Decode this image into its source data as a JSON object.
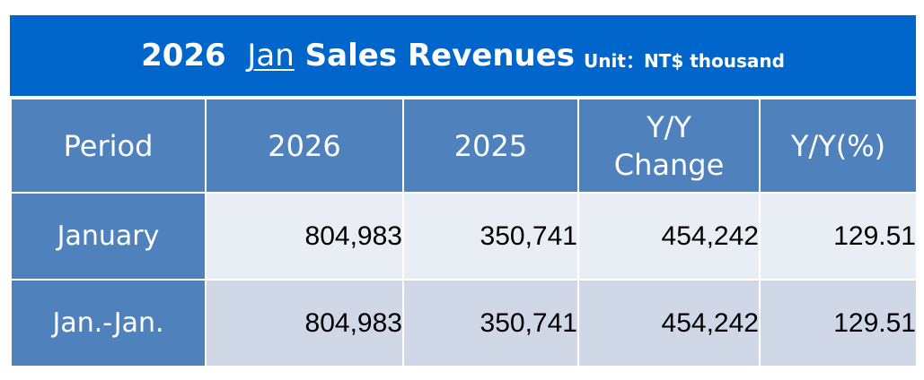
{
  "title": {
    "year": "2026",
    "month": "Jan",
    "text": "Sales Revenues",
    "unit": "Unit：NT$ thousand"
  },
  "colors": {
    "title_bg": "#0066cc",
    "header_bg": "#4f81bd",
    "row1_bg": "#e9edf4",
    "row2_bg": "#d0d8e8"
  },
  "chart_data": {
    "type": "table",
    "columns": [
      "Period",
      "2026",
      "2025",
      "Y/Y Change",
      "Y/Y(%)"
    ],
    "column_lines": [
      [
        "Period"
      ],
      [
        "2026"
      ],
      [
        "2025"
      ],
      [
        "Y/Y",
        "Change"
      ],
      [
        "Y/Y(%)"
      ]
    ],
    "rows": [
      [
        "January",
        "804,983",
        "350,741",
        "454,242",
        "129.51"
      ],
      [
        "Jan.-Jan.",
        "804,983",
        "350,741",
        "454,242",
        "129.51"
      ]
    ]
  }
}
